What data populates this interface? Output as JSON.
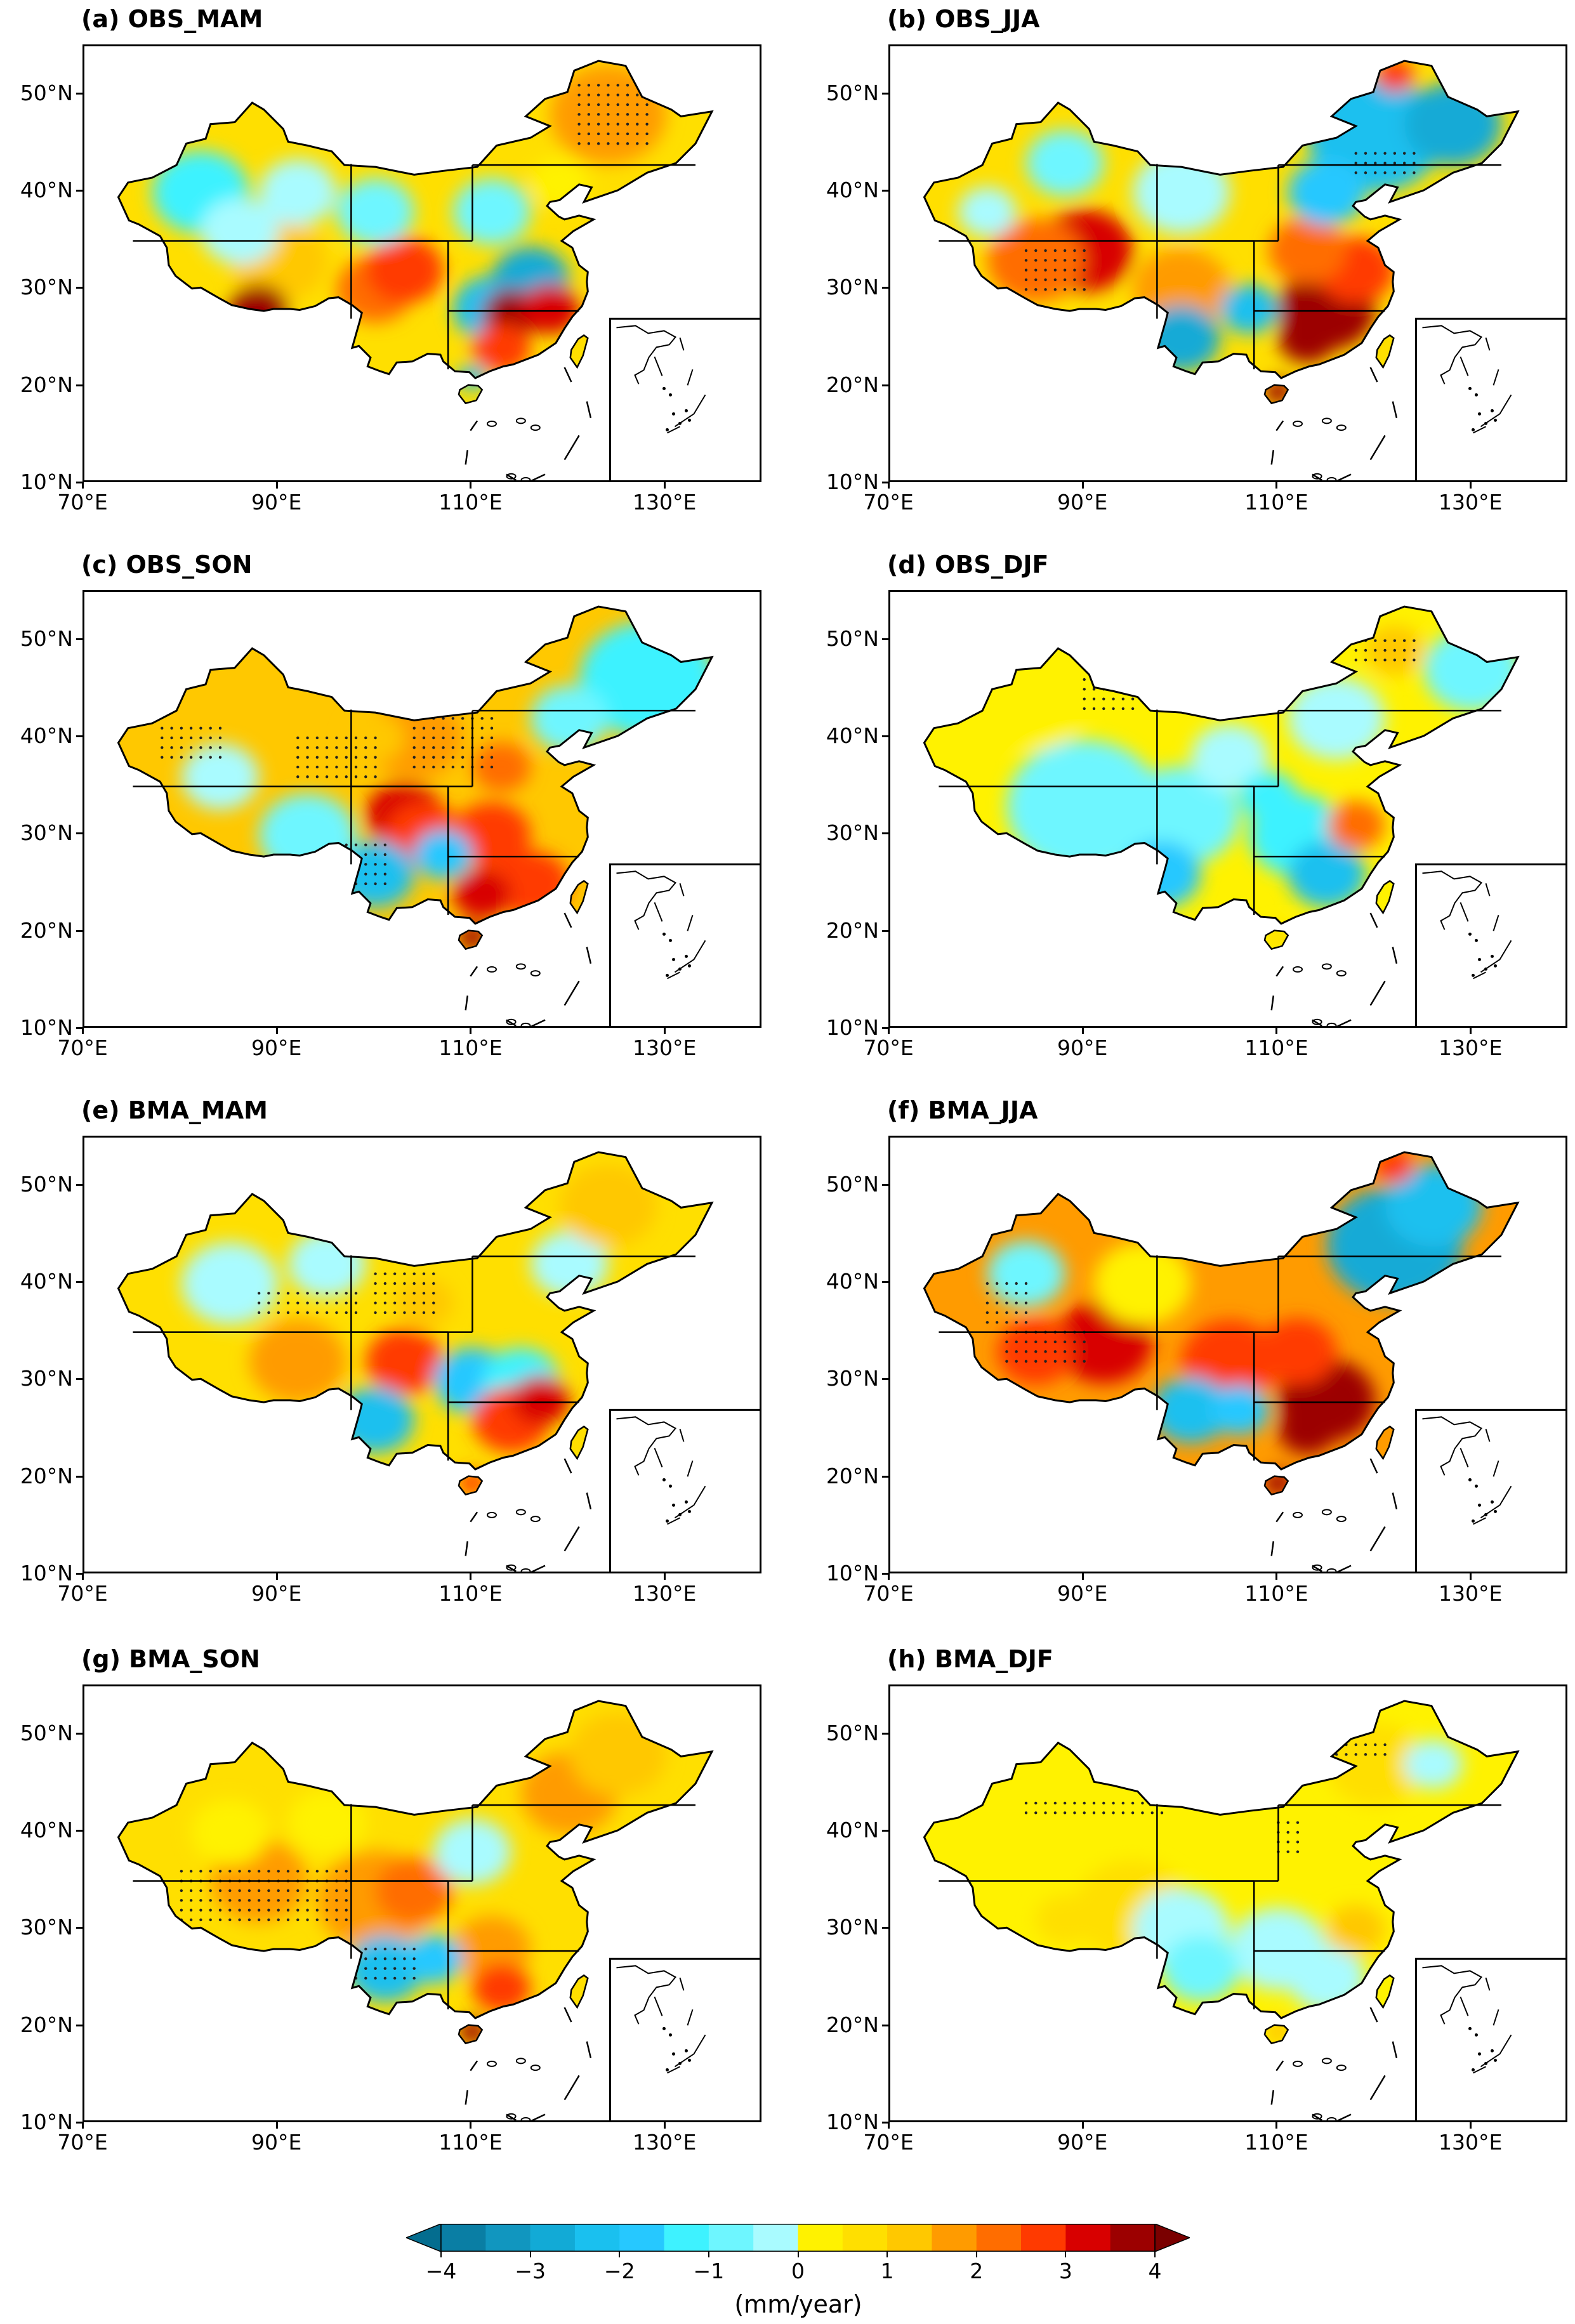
{
  "panels": [
    {
      "title": "(a) OBS_MAM",
      "scheme": "obs_mam"
    },
    {
      "title": "(b) OBS_JJA",
      "scheme": "obs_jja"
    },
    {
      "title": "(c) OBS_SON",
      "scheme": "obs_son"
    },
    {
      "title": "(d) OBS_DJF",
      "scheme": "obs_djf"
    },
    {
      "title": "(e) BMA_MAM",
      "scheme": "bma_mam"
    },
    {
      "title": "(f) BMA_JJA",
      "scheme": "bma_jja"
    },
    {
      "title": "(g) BMA_SON",
      "scheme": "bma_son"
    },
    {
      "title": "(h) BMA_DJF",
      "scheme": "bma_djf"
    }
  ],
  "axes": {
    "lat_ticks": [
      "50°N",
      "40°N",
      "30°N",
      "20°N",
      "10°N"
    ],
    "lon_ticks": [
      "70°E",
      "90°E",
      "110°E",
      "130°E"
    ],
    "lat_range": [
      10,
      55
    ],
    "lon_range": [
      70,
      140
    ]
  },
  "colorbar": {
    "ticks": [
      "−4",
      "−3",
      "−2",
      "−1",
      "0",
      "1",
      "2",
      "3",
      "4"
    ],
    "unit": "(mm/year)",
    "colors": [
      "#0a7ea4",
      "#1196bf",
      "#12aad6",
      "#1ac0ef",
      "#26c8ff",
      "#3ef2ff",
      "#6ef6ff",
      "#a9fbff",
      "#fff200",
      "#ffdf00",
      "#ffc800",
      "#ff9b00",
      "#ff6d00",
      "#ff3a00",
      "#d80000",
      "#9c0000"
    ]
  }
}
